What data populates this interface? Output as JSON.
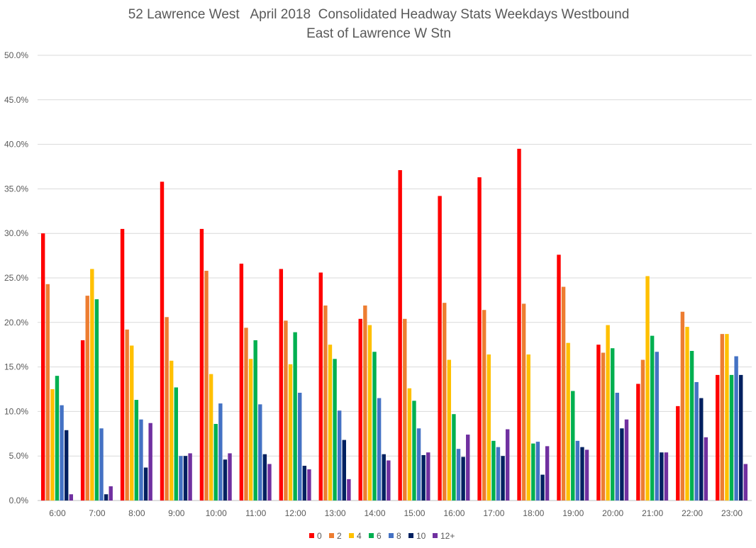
{
  "chart_data": {
    "type": "bar",
    "title": "52 Lawrence West   April 2018  Consolidated Headway Stats Weekdays Westbound",
    "subtitle": "East of Lawrence W Stn",
    "xlabel": "",
    "ylabel": "",
    "ylim": [
      0,
      50
    ],
    "ytick_labels": [
      "0.0%",
      "5.0%",
      "10.0%",
      "15.0%",
      "20.0%",
      "25.0%",
      "30.0%",
      "35.0%",
      "40.0%",
      "45.0%",
      "50.0%"
    ],
    "grid": true,
    "legend_position": "bottom",
    "categories": [
      "6:00",
      "7:00",
      "8:00",
      "9:00",
      "10:00",
      "11:00",
      "12:00",
      "13:00",
      "14:00",
      "15:00",
      "16:00",
      "17:00",
      "18:00",
      "19:00",
      "20:00",
      "21:00",
      "22:00",
      "23:00"
    ],
    "series": [
      {
        "name": "0",
        "color": "#ff0000",
        "values": [
          30.0,
          18.0,
          30.5,
          35.8,
          30.5,
          26.6,
          26.0,
          25.6,
          20.4,
          37.1,
          34.2,
          36.3,
          39.5,
          27.6,
          17.5,
          13.1,
          10.6,
          14.1
        ]
      },
      {
        "name": "2",
        "color": "#ed7d31",
        "values": [
          24.3,
          23.0,
          19.2,
          20.6,
          25.8,
          19.4,
          20.2,
          21.9,
          21.9,
          20.4,
          22.2,
          21.4,
          22.1,
          24.0,
          16.6,
          15.8,
          21.2,
          18.7
        ]
      },
      {
        "name": "4",
        "color": "#ffc000",
        "values": [
          12.5,
          26.0,
          17.4,
          15.7,
          14.2,
          15.9,
          15.3,
          17.5,
          19.7,
          12.6,
          15.8,
          16.4,
          16.4,
          17.7,
          19.7,
          25.2,
          19.5,
          18.7
        ]
      },
      {
        "name": "6",
        "color": "#00b050",
        "values": [
          14.0,
          22.6,
          11.3,
          12.7,
          8.6,
          18.0,
          18.9,
          15.9,
          16.7,
          11.2,
          9.7,
          6.7,
          6.4,
          12.3,
          17.1,
          18.5,
          16.8,
          14.1
        ]
      },
      {
        "name": "8",
        "color": "#4472c4",
        "values": [
          10.7,
          8.1,
          9.1,
          5.0,
          10.9,
          10.8,
          12.1,
          10.1,
          11.5,
          8.1,
          5.8,
          6.0,
          6.6,
          6.7,
          12.1,
          16.7,
          13.3,
          16.2
        ]
      },
      {
        "name": "10",
        "color": "#002060",
        "values": [
          7.9,
          0.7,
          3.7,
          5.0,
          4.6,
          5.2,
          3.9,
          6.8,
          5.2,
          5.1,
          4.9,
          5.0,
          2.9,
          6.0,
          8.1,
          5.4,
          11.5,
          14.1
        ]
      },
      {
        "name": "12+",
        "color": "#7030a0",
        "values": [
          0.7,
          1.6,
          8.7,
          5.3,
          5.3,
          4.1,
          3.5,
          2.4,
          4.5,
          5.4,
          7.4,
          8.0,
          6.1,
          5.7,
          9.1,
          5.4,
          7.1,
          4.1
        ]
      }
    ]
  }
}
